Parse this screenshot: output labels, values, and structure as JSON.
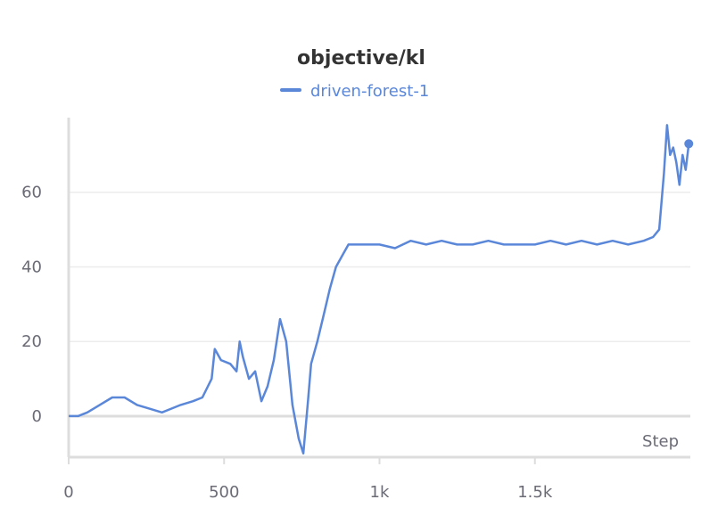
{
  "chart_data": {
    "type": "line",
    "title": "objective/kl",
    "xlabel": "Step",
    "ylabel": "",
    "xlim": [
      0,
      2000
    ],
    "ylim": [
      -11,
      80
    ],
    "x_ticks": [
      0,
      500,
      1000,
      1500
    ],
    "x_tick_labels": [
      "0",
      "500",
      "1k",
      "1.5k"
    ],
    "y_ticks": [
      0,
      20,
      40,
      60
    ],
    "y_tick_labels": [
      "0",
      "20",
      "40",
      "60"
    ],
    "grid": "horizontal",
    "legend_position": "top-center",
    "series": [
      {
        "name": "driven-forest-1",
        "color": "#5b87d9",
        "x": [
          0,
          30,
          60,
          100,
          140,
          180,
          220,
          260,
          300,
          330,
          360,
          400,
          430,
          460,
          470,
          490,
          520,
          540,
          550,
          560,
          580,
          600,
          620,
          640,
          660,
          680,
          700,
          720,
          740,
          755,
          770,
          780,
          800,
          820,
          840,
          860,
          880,
          900,
          950,
          1000,
          1050,
          1100,
          1150,
          1200,
          1250,
          1300,
          1350,
          1400,
          1450,
          1500,
          1550,
          1600,
          1650,
          1700,
          1750,
          1800,
          1850,
          1880,
          1900,
          1915,
          1925,
          1935,
          1945,
          1955,
          1965,
          1975,
          1985,
          1995
        ],
        "values": [
          0,
          0,
          1,
          3,
          5,
          5,
          3,
          2,
          1,
          2,
          3,
          4,
          5,
          10,
          18,
          15,
          14,
          12,
          20,
          16,
          10,
          12,
          4,
          8,
          15,
          26,
          20,
          3,
          -6,
          -10,
          4,
          14,
          20,
          27,
          34,
          40,
          43,
          46,
          46,
          46,
          45,
          47,
          46,
          47,
          46,
          46,
          47,
          46,
          46,
          46,
          47,
          46,
          47,
          46,
          47,
          46,
          47,
          48,
          50,
          65,
          78,
          70,
          72,
          68,
          62,
          70,
          66,
          73
        ]
      }
    ]
  }
}
